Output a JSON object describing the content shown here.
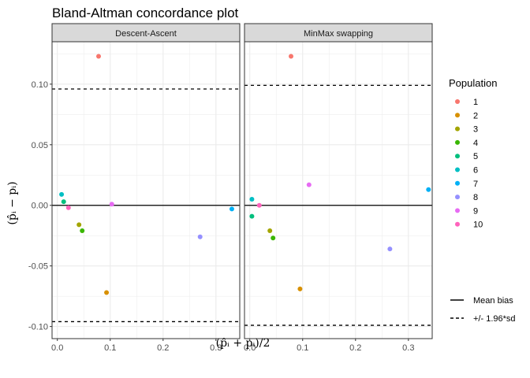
{
  "chart_data": {
    "type": "scatter",
    "title": "Bland-Altman concordance plot",
    "xlabel": "(p̂ᵢ + pᵢ)/2",
    "ylabel": "(p̂ᵢ − pᵢ)",
    "xlim": [
      -0.01,
      0.345
    ],
    "ylim": [
      -0.11,
      0.135
    ],
    "x_ticks": [
      0.0,
      0.1,
      0.2,
      0.3
    ],
    "x_tick_labels": [
      "0.0",
      "0.1",
      "0.2",
      "0.3"
    ],
    "y_ticks": [
      -0.1,
      -0.05,
      0.0,
      0.05,
      0.1
    ],
    "y_tick_labels": [
      "-0.10",
      "-0.05",
      "0.00",
      "0.05",
      "0.10"
    ],
    "grid": true,
    "legend_position": "right",
    "legend": {
      "title": "Population",
      "items": [
        {
          "label": "1",
          "color": "#F8766D"
        },
        {
          "label": "2",
          "color": "#D89000"
        },
        {
          "label": "3",
          "color": "#A3A500"
        },
        {
          "label": "4",
          "color": "#39B600"
        },
        {
          "label": "5",
          "color": "#00BF7D"
        },
        {
          "label": "6",
          "color": "#00BFC4"
        },
        {
          "label": "7",
          "color": "#00B0F6"
        },
        {
          "label": "8",
          "color": "#9590FF"
        },
        {
          "label": "9",
          "color": "#E76BF3"
        },
        {
          "label": "10",
          "color": "#FF62BC"
        }
      ],
      "lines": [
        {
          "label": "Mean bias",
          "style": "solid"
        },
        {
          "label": "+/- 1.96*sd",
          "style": "dashed"
        }
      ]
    },
    "panels": [
      {
        "name": "Descent-Ascent",
        "mean_bias": 0.0,
        "limits": [
          -0.096,
          0.096
        ],
        "points": [
          {
            "population": "1",
            "x": 0.078,
            "y": 0.123
          },
          {
            "population": "2",
            "x": 0.093,
            "y": -0.072
          },
          {
            "population": "3",
            "x": 0.041,
            "y": -0.016
          },
          {
            "population": "4",
            "x": 0.047,
            "y": -0.021
          },
          {
            "population": "5",
            "x": 0.012,
            "y": 0.003
          },
          {
            "population": "6",
            "x": 0.008,
            "y": 0.009
          },
          {
            "population": "7",
            "x": 0.33,
            "y": -0.003
          },
          {
            "population": "8",
            "x": 0.27,
            "y": -0.026
          },
          {
            "population": "9",
            "x": 0.103,
            "y": 0.001
          },
          {
            "population": "10",
            "x": 0.021,
            "y": -0.002
          }
        ]
      },
      {
        "name": "MinMax swapping",
        "mean_bias": 0.0,
        "limits": [
          -0.099,
          0.099
        ],
        "points": [
          {
            "population": "1",
            "x": 0.078,
            "y": 0.123
          },
          {
            "population": "2",
            "x": 0.095,
            "y": -0.069
          },
          {
            "population": "3",
            "x": 0.038,
            "y": -0.021
          },
          {
            "population": "4",
            "x": 0.044,
            "y": -0.027
          },
          {
            "population": "5",
            "x": 0.004,
            "y": -0.009
          },
          {
            "population": "6",
            "x": 0.004,
            "y": 0.005
          },
          {
            "population": "7",
            "x": 0.338,
            "y": 0.013
          },
          {
            "population": "8",
            "x": 0.265,
            "y": -0.036
          },
          {
            "population": "9",
            "x": 0.112,
            "y": 0.017
          },
          {
            "population": "10",
            "x": 0.018,
            "y": 0.0
          }
        ]
      }
    ]
  }
}
